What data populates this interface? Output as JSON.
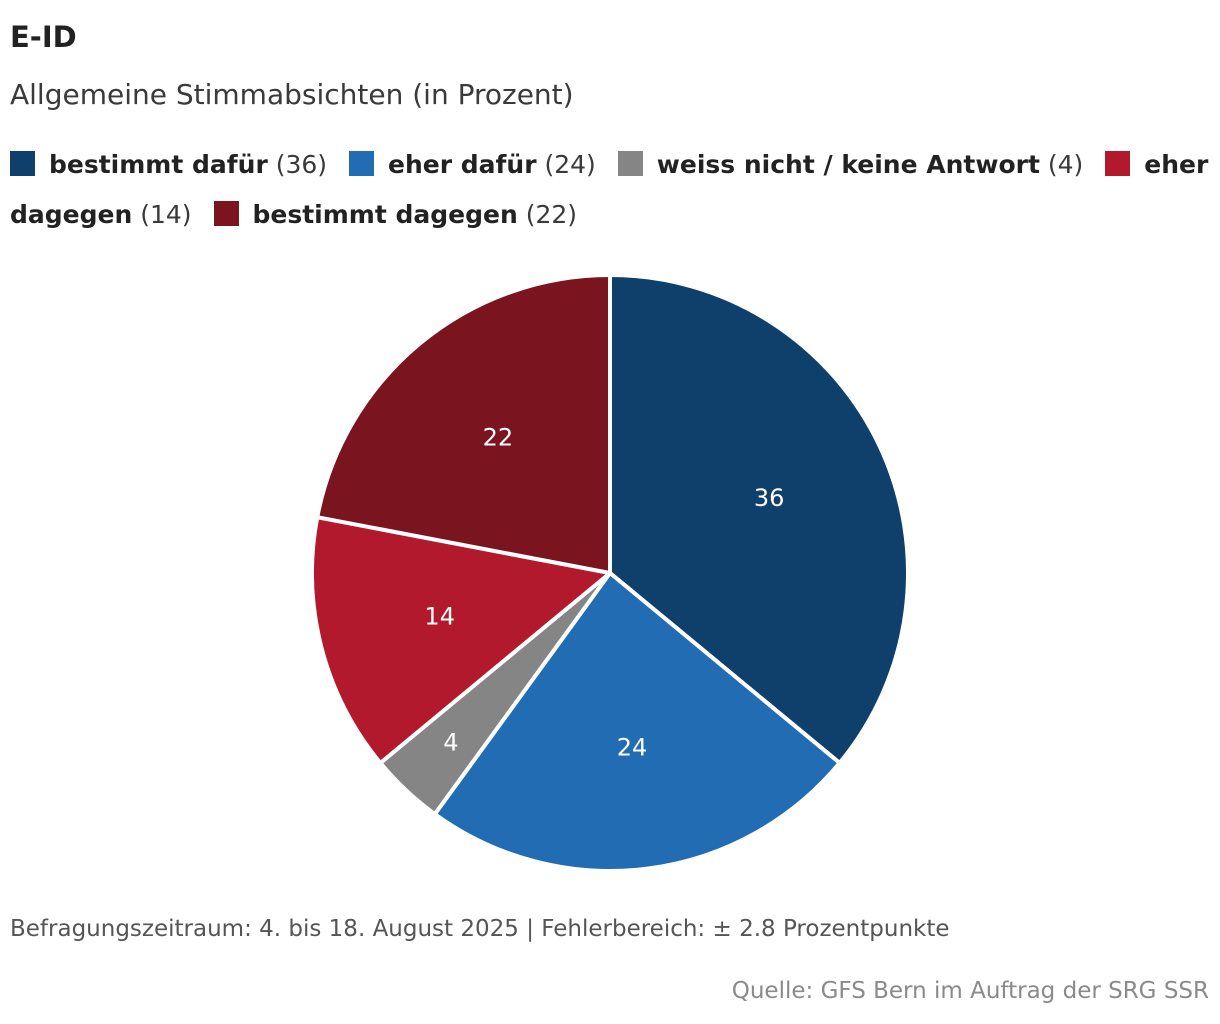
{
  "title": "E-ID",
  "subtitle": "Allgemeine Stimmabsichten (in Prozent)",
  "legend": [
    {
      "label": "bestimmt dafür",
      "value_text": "(36)",
      "color": "#0f3f6b"
    },
    {
      "label": "eher dafür",
      "value_text": "(24)",
      "color": "#216cb2"
    },
    {
      "label": "weiss nicht / keine Antwort",
      "value_text": "(4)",
      "color": "#858585"
    },
    {
      "label": "eher dagegen",
      "value_text": "(14)",
      "color": "#b3192d"
    },
    {
      "label": "bestimmt dagegen",
      "value_text": "(22)",
      "color": "#7a1520"
    }
  ],
  "chart_data": {
    "type": "pie",
    "title": "E-ID",
    "subtitle": "Allgemeine Stimmabsichten (in Prozent)",
    "categories": [
      "bestimmt dafür",
      "eher dafür",
      "weiss nicht / keine Antwort",
      "eher dagegen",
      "bestimmt dagegen"
    ],
    "values": [
      36,
      24,
      4,
      14,
      22
    ],
    "data_labels": [
      "36",
      "24",
      "4",
      "14",
      "22"
    ],
    "colors": [
      "#0f3f6b",
      "#216cb2",
      "#858585",
      "#b3192d",
      "#7a1520"
    ],
    "start": "top",
    "direction": "clockwise",
    "legend_position": "top"
  },
  "footer": {
    "note": "Befragungszeitraum: 4. bis 18. August 2025 | Fehlerbereich: ± 2.8 Prozentpunkte",
    "source": "Quelle: GFS Bern im Auftrag der SRG SSR"
  }
}
